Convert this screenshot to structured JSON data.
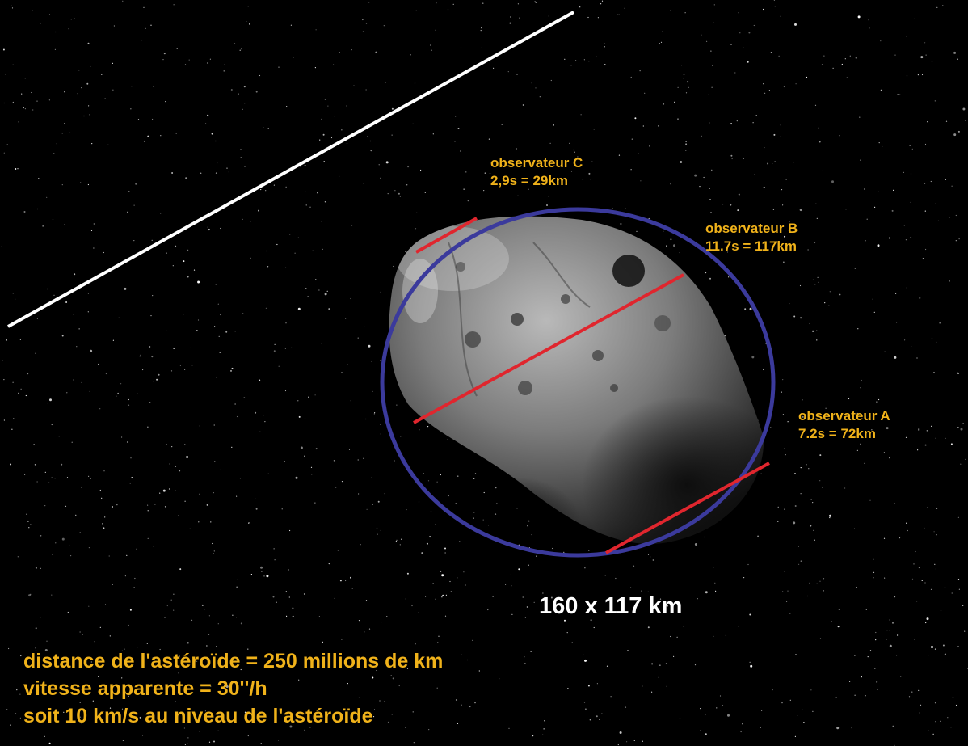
{
  "colors": {
    "background": "#000000",
    "star": "#ffffff",
    "label": "#f0b21a",
    "ellipse": "#3b3a9c",
    "chord": "#e0262e",
    "trajectory": "#ffffff",
    "dimension_text": "#ffffff"
  },
  "observers": [
    {
      "name": "observateur C",
      "result": "2,9s = 29km",
      "duration_s": 2.9,
      "chord_km": 29
    },
    {
      "name": "observateur B",
      "result": "11.7s = 117km",
      "duration_s": 11.7,
      "chord_km": 117
    },
    {
      "name": "observateur A",
      "result": "7.2s = 72km",
      "duration_s": 7.2,
      "chord_km": 72
    }
  ],
  "dimensions": "160 x 117 km",
  "info_lines": [
    "distance de l'astéroïde = 250 millions de km",
    "vitesse apparente = 30''/h",
    "soit 10 km/s au niveau de l'astéroïde"
  ]
}
